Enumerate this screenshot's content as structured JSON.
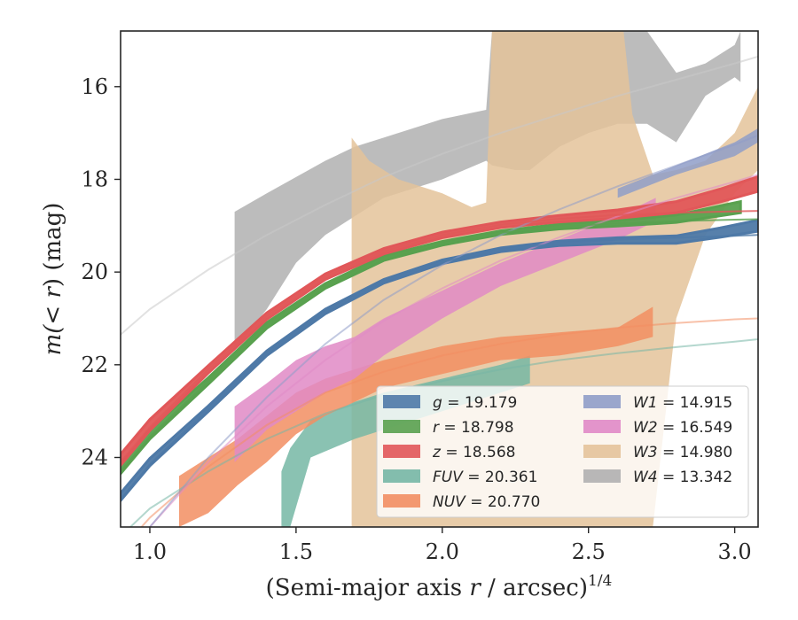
{
  "chart_data": {
    "type": "area",
    "xlabel": "(Semi-major axis r / arcsec)^{1/4}",
    "xlabel_parts": [
      "(Semi-major axis ",
      "r",
      " / arcsec)",
      "1/4"
    ],
    "ylabel_parts": [
      "m(",
      "< r",
      ") (mag)"
    ],
    "xlim": [
      0.9,
      3.08
    ],
    "ylim": [
      25.5,
      14.8
    ],
    "y_inverted": true,
    "xticks": [
      1.0,
      1.5,
      2.0,
      2.5,
      3.0
    ],
    "xtick_labels": [
      "1.0",
      "1.5",
      "2.0",
      "2.5",
      "3.0"
    ],
    "yticks": [
      16,
      18,
      20,
      22,
      24
    ],
    "ytick_labels": [
      "16",
      "18",
      "20",
      "22",
      "24"
    ],
    "grid": false,
    "legend_placement": "lower-right",
    "series": [
      {
        "band": "g",
        "value": "19.179",
        "color": "#4e79a7",
        "model_x": [
          0.9,
          1.0,
          1.2,
          1.4,
          1.6,
          1.8,
          2.0,
          2.2,
          2.4,
          2.6,
          2.8,
          3.0,
          3.08
        ],
        "model_y": [
          24.9,
          24.15,
          22.95,
          21.75,
          20.85,
          20.2,
          19.78,
          19.52,
          19.38,
          19.3,
          19.26,
          19.22,
          19.2
        ],
        "data_x": [
          0.9,
          1.0,
          1.2,
          1.4,
          1.6,
          1.8,
          2.0,
          2.2,
          2.4,
          2.6,
          2.8,
          2.95,
          3.08
        ],
        "data_y": [
          24.85,
          24.1,
          22.95,
          21.75,
          20.85,
          20.2,
          19.78,
          19.52,
          19.38,
          19.32,
          19.3,
          19.15,
          19.0
        ],
        "band_width": [
          0.08,
          0.08,
          0.06,
          0.05,
          0.05,
          0.04,
          0.04,
          0.04,
          0.05,
          0.06,
          0.08,
          0.1,
          0.12
        ]
      },
      {
        "band": "r",
        "value": "18.798",
        "color": "#59a14f",
        "model_x": [
          0.9,
          1.0,
          1.2,
          1.4,
          1.6,
          1.8,
          2.0,
          2.2,
          2.4,
          2.6,
          2.8,
          3.0,
          3.08
        ],
        "model_y": [
          24.3,
          23.55,
          22.35,
          21.15,
          20.3,
          19.7,
          19.38,
          19.15,
          19.02,
          18.95,
          18.9,
          18.87,
          18.86
        ],
        "data_x": [
          0.9,
          1.0,
          1.2,
          1.4,
          1.6,
          1.8,
          2.0,
          2.2,
          2.4,
          2.6,
          2.8,
          3.02
        ],
        "data_y": [
          24.25,
          23.5,
          22.35,
          21.15,
          20.3,
          19.7,
          19.38,
          19.15,
          19.02,
          18.95,
          18.85,
          18.6
        ],
        "band_width": [
          0.1,
          0.1,
          0.07,
          0.06,
          0.05,
          0.05,
          0.04,
          0.04,
          0.05,
          0.06,
          0.08,
          0.12
        ]
      },
      {
        "band": "z",
        "value": "18.568",
        "color": "#e15759",
        "model_x": [
          0.9,
          1.0,
          1.2,
          1.4,
          1.6,
          1.8,
          2.0,
          2.2,
          2.4,
          2.6,
          2.8,
          3.0,
          3.08
        ],
        "model_y": [
          24.1,
          23.35,
          22.1,
          20.95,
          20.1,
          19.55,
          19.2,
          18.98,
          18.85,
          18.77,
          18.72,
          18.69,
          18.68
        ],
        "data_x": [
          0.9,
          1.0,
          1.2,
          1.4,
          1.6,
          1.8,
          2.0,
          2.2,
          2.4,
          2.6,
          2.8,
          2.95,
          3.08
        ],
        "data_y": [
          24.05,
          23.3,
          22.1,
          20.95,
          20.1,
          19.55,
          19.2,
          18.98,
          18.85,
          18.75,
          18.6,
          18.35,
          18.1
        ],
        "band_width": [
          0.12,
          0.12,
          0.08,
          0.07,
          0.06,
          0.06,
          0.06,
          0.06,
          0.07,
          0.09,
          0.12,
          0.14,
          0.16
        ]
      },
      {
        "band": "FUV",
        "value": "20.361",
        "color": "#76b7a5",
        "model_x": [
          0.9,
          1.0,
          1.2,
          1.4,
          1.6,
          1.8,
          2.0,
          2.2,
          2.4,
          2.6,
          2.8,
          3.0,
          3.08
        ],
        "model_y": [
          25.7,
          25.1,
          24.3,
          23.6,
          23.05,
          22.65,
          22.35,
          22.1,
          21.9,
          21.75,
          21.62,
          21.5,
          21.45
        ],
        "data_x": [
          1.45,
          1.48,
          1.55,
          1.7,
          1.8,
          2.0,
          2.2,
          2.3
        ],
        "data_lo": [
          24.3,
          23.8,
          23.2,
          22.8,
          22.6,
          22.3,
          22.0,
          21.8
        ],
        "data_hi": [
          25.5,
          25.5,
          24.0,
          23.6,
          23.4,
          23.0,
          22.6,
          22.4
        ]
      },
      {
        "band": "NUV",
        "value": "20.770",
        "color": "#f28e62",
        "model_x": [
          0.9,
          1.0,
          1.2,
          1.4,
          1.6,
          1.8,
          2.0,
          2.2,
          2.4,
          2.6,
          2.8,
          3.0,
          3.08
        ],
        "model_y": [
          26.0,
          25.3,
          24.2,
          23.3,
          22.6,
          22.15,
          21.8,
          21.55,
          21.35,
          21.2,
          21.1,
          21.02,
          21.0
        ],
        "data_x": [
          1.1,
          1.2,
          1.3,
          1.4,
          1.5,
          1.6,
          1.7,
          1.8,
          2.0,
          2.2,
          2.4,
          2.6,
          2.72
        ],
        "data_lo": [
          24.4,
          24.0,
          23.6,
          23.1,
          22.6,
          22.3,
          22.1,
          21.9,
          21.6,
          21.4,
          21.3,
          21.2,
          20.75
        ],
        "data_hi": [
          25.5,
          25.2,
          24.6,
          24.1,
          23.5,
          23.1,
          22.8,
          22.5,
          22.2,
          21.9,
          21.8,
          21.6,
          21.4
        ]
      },
      {
        "band": "W1",
        "value": "14.915",
        "color": "#8f9dc8",
        "model_x": [
          0.9,
          1.0,
          1.2,
          1.4,
          1.6,
          1.8,
          2.0,
          2.2,
          2.4,
          2.6,
          2.8,
          3.0,
          3.08
        ],
        "model_y": [
          26.4,
          25.5,
          24.0,
          22.7,
          21.55,
          20.6,
          19.85,
          19.2,
          18.65,
          18.15,
          17.7,
          17.25,
          17.05
        ],
        "data_x": [
          2.6,
          2.8,
          3.0,
          3.08
        ],
        "data_lo": [
          18.2,
          17.7,
          17.2,
          16.9
        ],
        "data_hi": [
          18.4,
          17.9,
          17.5,
          17.2
        ]
      },
      {
        "band": "W2",
        "value": "16.549",
        "color": "#e08ac6",
        "model_x": [
          0.9,
          1.0,
          1.2,
          1.4,
          1.6,
          1.8,
          2.0,
          2.2,
          2.4,
          2.6,
          2.8,
          3.0,
          3.08
        ],
        "model_y": [
          26.3,
          25.5,
          24.1,
          22.9,
          21.9,
          21.05,
          20.35,
          19.75,
          19.25,
          18.8,
          18.4,
          18.05,
          17.9
        ],
        "data_x": [
          1.29,
          1.4,
          1.5,
          1.6,
          1.7,
          1.8,
          2.0,
          2.2,
          2.4,
          2.6,
          2.73
        ],
        "data_lo": [
          22.9,
          22.4,
          21.9,
          21.6,
          21.4,
          21.0,
          20.4,
          19.8,
          19.3,
          18.8,
          18.4
        ],
        "data_hi": [
          24.1,
          23.4,
          23.0,
          22.6,
          22.3,
          21.8,
          21.0,
          20.3,
          19.8,
          19.3,
          18.9
        ]
      },
      {
        "band": "W3",
        "value": "14.980",
        "color": "#e4c39a",
        "data_x": [
          1.69,
          1.75,
          1.85,
          2.0,
          2.1,
          2.15,
          2.17,
          2.3,
          2.4,
          2.5,
          2.62,
          2.65,
          2.72,
          2.8,
          2.9,
          3.0,
          3.08
        ],
        "data_lo": [
          17.1,
          17.6,
          18.0,
          18.3,
          18.6,
          18.5,
          14.8,
          14.8,
          14.8,
          14.8,
          14.8,
          16.6,
          17.9,
          17.8,
          17.6,
          17.0,
          16.0
        ],
        "data_hi": [
          25.5,
          25.5,
          25.5,
          25.5,
          25.5,
          25.5,
          25.5,
          25.5,
          25.5,
          25.5,
          25.5,
          25.5,
          25.5,
          21.0,
          19.2,
          18.3,
          17.8
        ]
      },
      {
        "band": "W4",
        "value": "13.342",
        "color": "#b0b0b0",
        "model_x": [
          0.9,
          1.0,
          1.2,
          1.4,
          1.6,
          1.8,
          2.0,
          2.2,
          2.4,
          2.6,
          2.8,
          3.0,
          3.08
        ],
        "model_y": [
          21.35,
          20.8,
          19.95,
          19.2,
          18.55,
          17.95,
          17.45,
          17.0,
          16.6,
          16.2,
          15.85,
          15.5,
          15.35
        ],
        "data_x": [
          1.29,
          1.4,
          1.5,
          1.6,
          1.7,
          1.8,
          2.0,
          2.15,
          2.17,
          2.25,
          2.3,
          2.4,
          2.5,
          2.6,
          2.7,
          2.8,
          2.9,
          3.0,
          3.02
        ],
        "data_lo": [
          21.7,
          20.8,
          19.8,
          19.2,
          18.8,
          18.4,
          18.0,
          17.6,
          17.7,
          17.8,
          17.8,
          17.3,
          17.0,
          16.8,
          16.8,
          17.2,
          16.2,
          15.8,
          15.9
        ],
        "data_hi": [
          18.7,
          18.3,
          17.95,
          17.6,
          17.3,
          17.1,
          16.7,
          16.5,
          14.8,
          14.8,
          14.8,
          14.8,
          14.8,
          14.8,
          14.8,
          15.7,
          15.5,
          15.1,
          14.8
        ]
      }
    ]
  }
}
